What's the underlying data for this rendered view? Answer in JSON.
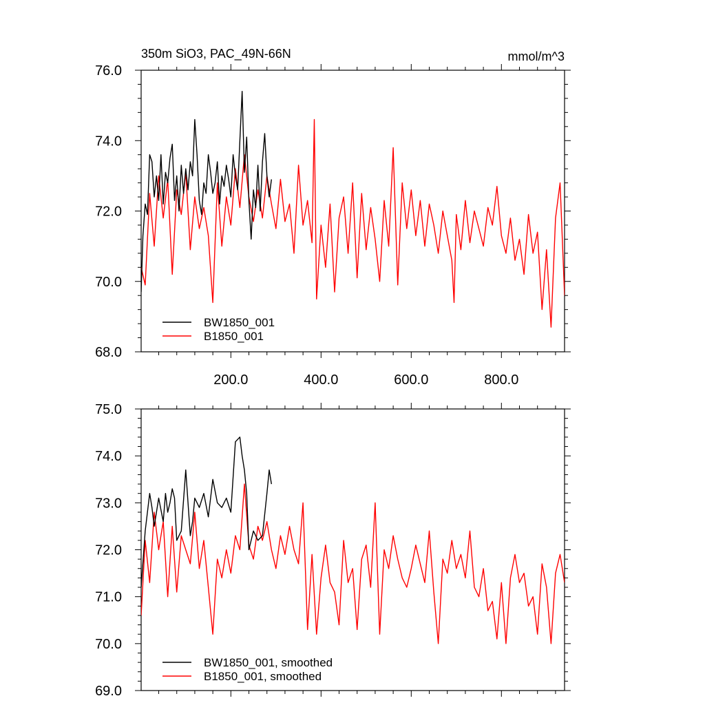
{
  "chart_data": [
    {
      "type": "line",
      "title": "350m SiO3, PAC_49N-66N",
      "units": "mmol/m^3",
      "xlim": [
        1,
        940
      ],
      "ylim": [
        68.0,
        76.0
      ],
      "x_ticks": [
        200,
        400,
        600,
        800
      ],
      "x_tick_labels": [
        "200.0",
        "400.0",
        "600.0",
        "800.0"
      ],
      "y_ticks": [
        68,
        70,
        72,
        74,
        76
      ],
      "y_tick_labels": [
        "68.0",
        "70.0",
        "72.0",
        "74.0",
        "76.0"
      ],
      "legend_placement": "bottom-left",
      "colors": {
        "BW1850_001": "#000000",
        "B1850_001": "#ff0000"
      },
      "series": [
        {
          "name": "BW1850_001",
          "color": "#000000",
          "x": [
            1,
            5,
            10,
            15,
            20,
            25,
            30,
            35,
            40,
            45,
            50,
            55,
            60,
            65,
            70,
            75,
            80,
            85,
            90,
            95,
            100,
            105,
            110,
            115,
            120,
            125,
            130,
            135,
            140,
            145,
            150,
            155,
            160,
            165,
            170,
            175,
            180,
            185,
            190,
            195,
            200,
            205,
            210,
            215,
            220,
            225,
            230,
            235,
            240,
            245,
            250,
            255,
            260,
            265,
            270,
            275,
            280,
            285,
            290
          ],
          "y": [
            69.7,
            71.3,
            72.2,
            71.9,
            73.6,
            73.4,
            72.4,
            73.0,
            72.3,
            73.6,
            72.2,
            73.1,
            72.8,
            73.5,
            73.9,
            72.3,
            73.0,
            72.0,
            73.3,
            72.5,
            73.2,
            72.6,
            73.4,
            73.0,
            74.6,
            73.6,
            72.3,
            71.9,
            72.8,
            72.5,
            73.6,
            73.1,
            72.5,
            72.8,
            73.4,
            72.2,
            73.0,
            72.7,
            73.3,
            72.9,
            72.4,
            73.6,
            73.0,
            72.6,
            74.0,
            75.4,
            73.1,
            74.1,
            72.3,
            71.2,
            72.6,
            72.1,
            73.3,
            72.0,
            73.4,
            74.2,
            73.0,
            72.4,
            72.9
          ]
        },
        {
          "name": "B1850_001",
          "color": "#ff0000",
          "x": [
            1,
            10,
            20,
            30,
            40,
            50,
            60,
            70,
            80,
            90,
            100,
            110,
            120,
            130,
            140,
            150,
            160,
            170,
            180,
            190,
            200,
            210,
            220,
            230,
            240,
            250,
            260,
            270,
            280,
            290,
            300,
            310,
            320,
            330,
            340,
            350,
            360,
            370,
            380,
            385,
            390,
            400,
            410,
            420,
            430,
            440,
            450,
            460,
            470,
            480,
            490,
            500,
            510,
            520,
            530,
            540,
            550,
            560,
            570,
            580,
            590,
            600,
            610,
            620,
            630,
            640,
            650,
            660,
            670,
            680,
            690,
            695,
            700,
            710,
            720,
            730,
            740,
            750,
            760,
            770,
            780,
            790,
            800,
            810,
            820,
            830,
            840,
            850,
            860,
            870,
            880,
            890,
            900,
            910,
            920,
            930,
            940
          ],
          "y": [
            70.4,
            69.9,
            72.5,
            71.0,
            73.0,
            71.8,
            72.9,
            70.2,
            72.6,
            71.9,
            73.1,
            70.9,
            72.4,
            71.5,
            72.1,
            71.3,
            69.4,
            72.8,
            71.0,
            72.4,
            71.6,
            73.2,
            72.1,
            73.6,
            72.4,
            71.7,
            72.6,
            71.8,
            73.0,
            72.2,
            71.5,
            72.9,
            71.7,
            72.2,
            70.8,
            73.3,
            71.6,
            72.3,
            71.1,
            74.6,
            69.5,
            71.6,
            70.4,
            72.2,
            69.7,
            71.8,
            72.4,
            70.8,
            72.8,
            70.1,
            72.5,
            70.9,
            72.1,
            71.2,
            70.0,
            72.3,
            71.0,
            73.8,
            69.9,
            72.8,
            71.5,
            72.6,
            71.3,
            72.3,
            71.0,
            72.2,
            71.6,
            70.8,
            72.0,
            71.3,
            70.6,
            69.4,
            71.9,
            70.9,
            72.3,
            71.1,
            72.0,
            71.5,
            71.0,
            72.1,
            71.6,
            72.7,
            71.3,
            70.8,
            71.8,
            70.6,
            71.2,
            70.2,
            71.9,
            70.8,
            71.4,
            69.2,
            70.9,
            68.7,
            71.8,
            72.8,
            69.6
          ]
        }
      ],
      "legend": [
        "BW1850_001",
        "B1850_001"
      ]
    },
    {
      "type": "line",
      "title": "",
      "xlim": [
        1,
        940
      ],
      "ylim": [
        69.0,
        75.0
      ],
      "y_ticks": [
        69,
        70,
        71,
        72,
        73,
        74,
        75
      ],
      "y_tick_labels": [
        "69.0",
        "70.0",
        "71.0",
        "72.0",
        "73.0",
        "74.0",
        "75.0"
      ],
      "legend_placement": "bottom-left",
      "colors": {
        "BW1850_001, smoothed": "#000000",
        "B1850_001, smoothed": "#ff0000"
      },
      "series": [
        {
          "name": "BW1850_001, smoothed",
          "color": "#000000",
          "x": [
            1,
            10,
            20,
            25,
            30,
            40,
            50,
            55,
            60,
            65,
            70,
            75,
            80,
            90,
            100,
            110,
            115,
            120,
            130,
            140,
            150,
            160,
            170,
            180,
            190,
            200,
            210,
            220,
            225,
            230,
            235,
            240,
            250,
            260,
            270,
            280,
            285,
            290
          ],
          "y": [
            71.2,
            72.4,
            73.2,
            72.9,
            72.5,
            73.1,
            72.6,
            73.2,
            72.8,
            73.0,
            73.3,
            73.1,
            72.2,
            72.4,
            73.7,
            72.3,
            72.6,
            73.1,
            72.9,
            73.2,
            72.7,
            73.5,
            73.0,
            72.9,
            73.1,
            72.8,
            74.3,
            74.4,
            74.0,
            73.7,
            73.2,
            72.0,
            72.4,
            72.2,
            72.3,
            73.2,
            73.7,
            73.4
          ]
        },
        {
          "name": "B1850_001, smoothed",
          "color": "#ff0000",
          "x": [
            1,
            10,
            20,
            30,
            40,
            50,
            60,
            70,
            80,
            90,
            100,
            110,
            120,
            130,
            140,
            150,
            160,
            170,
            180,
            190,
            200,
            210,
            220,
            230,
            240,
            250,
            260,
            270,
            280,
            290,
            300,
            310,
            320,
            330,
            340,
            350,
            360,
            370,
            380,
            390,
            400,
            410,
            420,
            430,
            440,
            450,
            460,
            470,
            480,
            490,
            500,
            510,
            520,
            530,
            540,
            550,
            560,
            570,
            580,
            590,
            600,
            610,
            620,
            630,
            640,
            650,
            660,
            670,
            680,
            690,
            700,
            710,
            720,
            730,
            740,
            750,
            760,
            770,
            780,
            790,
            800,
            810,
            820,
            830,
            840,
            850,
            860,
            870,
            880,
            890,
            900,
            910,
            920,
            930,
            940
          ],
          "y": [
            70.6,
            72.2,
            71.3,
            72.8,
            72.0,
            72.6,
            71.0,
            72.5,
            71.1,
            72.3,
            72.0,
            71.7,
            72.8,
            71.6,
            72.2,
            71.2,
            70.2,
            71.8,
            71.4,
            72.0,
            71.5,
            72.3,
            72.0,
            73.4,
            72.1,
            71.8,
            72.5,
            72.2,
            72.6,
            72.0,
            71.6,
            72.3,
            71.9,
            72.5,
            72.0,
            71.7,
            73.0,
            70.3,
            71.9,
            70.2,
            71.4,
            72.1,
            71.3,
            71.1,
            70.4,
            72.2,
            71.3,
            71.6,
            70.3,
            71.8,
            72.1,
            71.2,
            73.0,
            70.2,
            72.0,
            71.6,
            72.3,
            71.8,
            71.4,
            71.2,
            71.6,
            72.1,
            71.7,
            71.3,
            72.4,
            71.1,
            70.0,
            71.8,
            71.5,
            72.2,
            71.6,
            71.9,
            71.4,
            72.4,
            71.2,
            71.0,
            71.6,
            70.7,
            70.9,
            70.1,
            71.3,
            70.0,
            71.4,
            71.9,
            71.3,
            71.5,
            70.8,
            71.0,
            70.2,
            71.7,
            71.2,
            70.0,
            71.5,
            71.9,
            71.3
          ]
        }
      ],
      "legend": [
        "BW1850_001, smoothed",
        "B1850_001, smoothed"
      ]
    }
  ]
}
